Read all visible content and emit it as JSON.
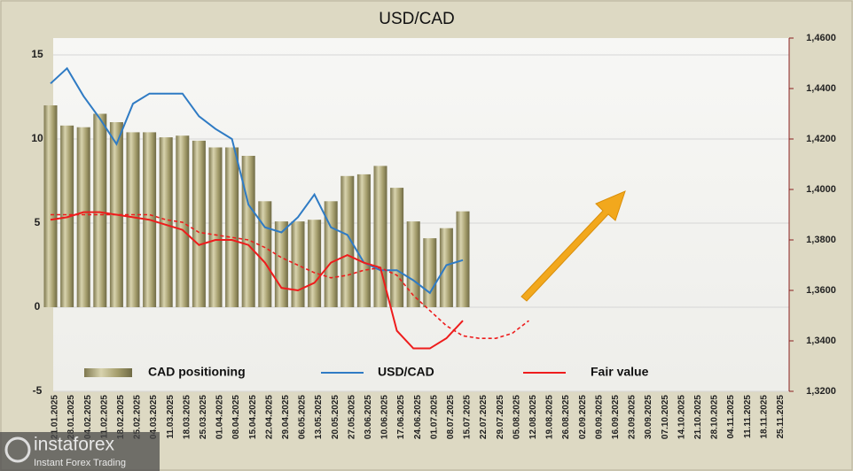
{
  "chart_data": {
    "type": "bar",
    "title": "USD/CAD",
    "categories": [
      "21.01.2025",
      "28.01.2025",
      "04.02.2025",
      "11.02.2025",
      "18.02.2025",
      "25.02.2025",
      "04.03.2025",
      "11.03.2025",
      "18.03.2025",
      "25.03.2025",
      "01.04.2025",
      "08.04.2025",
      "15.04.2025",
      "22.04.2025",
      "29.04.2025",
      "06.05.2025",
      "13.05.2025",
      "20.05.2025",
      "27.05.2025",
      "03.06.2025",
      "10.06.2025",
      "17.06.2025",
      "24.06.2025",
      "01.07.2025",
      "08.07.2025",
      "15.07.2025",
      "22.07.2025",
      "29.07.2025",
      "05.08.2025",
      "12.08.2025",
      "19.08.2025",
      "26.08.2025",
      "02.09.2025",
      "09.09.2025",
      "16.09.2025",
      "23.09.2025",
      "30.09.2025",
      "07.10.2025",
      "14.10.2025",
      "21.10.2025",
      "28.10.2025",
      "04.11.2025",
      "11.11.2025",
      "18.11.2025",
      "25.11.2025"
    ],
    "series": [
      {
        "name": "CAD positioning",
        "type": "bar",
        "axis": "y",
        "color": "#a49d6c",
        "values": [
          12.0,
          10.8,
          10.7,
          11.5,
          11.0,
          10.4,
          10.4,
          10.1,
          10.2,
          9.9,
          9.5,
          9.5,
          9.0,
          6.3,
          5.1,
          5.1,
          5.2,
          6.3,
          7.8,
          7.9,
          8.4,
          7.1,
          5.1,
          4.1,
          4.7,
          5.7,
          null,
          null,
          null,
          null,
          null,
          null,
          null,
          null,
          null,
          null,
          null,
          null,
          null,
          null,
          null,
          null,
          null,
          null,
          null
        ]
      },
      {
        "name": "USD/CAD",
        "type": "line",
        "axis": "y2",
        "color": "#2f7bc4",
        "values": [
          1.442,
          1.448,
          1.437,
          1.428,
          1.418,
          1.434,
          1.438,
          1.438,
          1.438,
          1.429,
          1.424,
          1.42,
          1.394,
          1.385,
          1.383,
          1.389,
          1.398,
          1.385,
          1.382,
          1.371,
          1.368,
          1.368,
          1.364,
          1.359,
          1.37,
          1.372,
          null,
          null,
          null,
          null,
          null,
          null,
          null,
          null,
          null,
          null,
          null,
          null,
          null,
          null,
          null,
          null,
          null,
          null,
          null
        ]
      },
      {
        "name": "Fair value",
        "type": "line",
        "axis": "y2",
        "color": "#ee1c1c",
        "values": [
          1.388,
          1.389,
          1.391,
          1.391,
          1.39,
          1.389,
          1.388,
          1.386,
          1.384,
          1.378,
          1.38,
          1.38,
          1.378,
          1.371,
          1.361,
          1.36,
          1.363,
          1.371,
          1.374,
          1.371,
          1.369,
          1.344,
          1.337,
          1.337,
          1.341,
          1.348,
          null,
          null,
          null,
          null,
          null,
          null,
          null,
          null,
          null,
          null,
          null,
          null,
          null,
          null,
          null,
          null,
          null,
          null,
          null
        ]
      },
      {
        "type": "line",
        "axis": "y2",
        "color": "#ee1c1c",
        "dashed": true,
        "values": [
          1.39,
          1.39,
          1.39,
          1.39,
          1.39,
          1.39,
          1.39,
          1.388,
          1.387,
          1.383,
          1.382,
          1.381,
          1.38,
          1.377,
          1.373,
          1.37,
          1.367,
          1.365,
          1.366,
          1.368,
          1.369,
          1.366,
          1.358,
          1.352,
          1.346,
          1.342,
          1.341,
          1.341,
          1.343,
          1.348,
          null,
          null,
          null,
          null,
          null,
          null,
          null,
          null,
          null,
          null,
          null,
          null,
          null,
          null,
          null
        ]
      }
    ],
    "ylim": [
      -5,
      16
    ],
    "yticks": [
      -5,
      0,
      5,
      10,
      15
    ],
    "y2lim": [
      1.32,
      1.46
    ],
    "y2ticks": [
      {
        "value": 1.32,
        "label": "1,3200"
      },
      {
        "value": 1.34,
        "label": "1,3400"
      },
      {
        "value": 1.36,
        "label": "1,3600"
      },
      {
        "value": 1.38,
        "label": "1,3800"
      },
      {
        "value": 1.4,
        "label": "1,4000"
      },
      {
        "value": 1.42,
        "label": "1,4200"
      },
      {
        "value": 1.44,
        "label": "1,4400"
      },
      {
        "value": 1.46,
        "label": "1,4600"
      }
    ],
    "grid": true,
    "legend": "bottom"
  },
  "watermark": {
    "brand": "instaforex",
    "tagline": "Instant Forex Trading"
  }
}
